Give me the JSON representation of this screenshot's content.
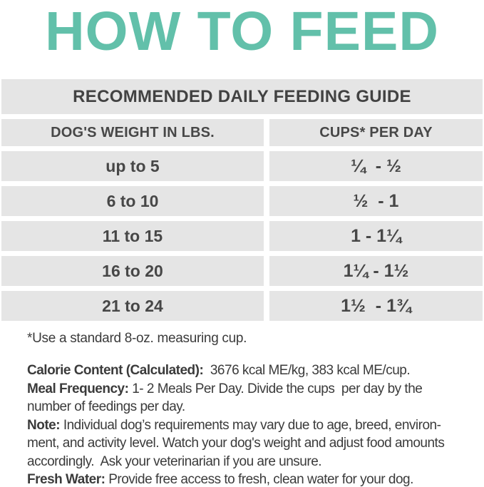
{
  "colors": {
    "accent": "#62c0aa",
    "band": "#e5e5e5",
    "table_text": "#474747",
    "body_text": "#3b3b3b"
  },
  "heading": "HOW TO FEED",
  "table": {
    "title": "RECOMMENDED DAILY FEEDING GUIDE",
    "columns": [
      {
        "label": "DOG'S WEIGHT IN LBS."
      },
      {
        "label": "CUPS* PER DAY"
      }
    ],
    "rows": [
      {
        "weight": "up to 5",
        "cups": "¼  - ½"
      },
      {
        "weight": "6 to 10",
        "cups": "½  - 1"
      },
      {
        "weight": "11 to 15",
        "cups": "1 - 1¼"
      },
      {
        "weight": "16 to 20",
        "cups": "1¼ - 1½"
      },
      {
        "weight": "21 to 24",
        "cups": "1½  - 1¾"
      }
    ]
  },
  "footnote": "*Use a standard 8-oz. measuring cup.",
  "notes": [
    {
      "label": "Calorie Content (Calculated):",
      "text": "  3676 kcal ME/kg, 383 kcal ME/cup."
    },
    {
      "label": "Meal Frequency:",
      "text": " 1- 2 Meals Per Day. Divide the cups  per day by the\nnumber of feedings per day."
    },
    {
      "label": "Note:",
      "text": " Individual dog’s requirements may vary due to age, breed, environ-\nment, and activity level. Watch your dog's weight and adjust food amounts\naccordingly.  Ask your veterinarian if you are unsure."
    },
    {
      "label": "Fresh Water:",
      "text": " Provide free access to fresh, clean water for your dog."
    }
  ]
}
